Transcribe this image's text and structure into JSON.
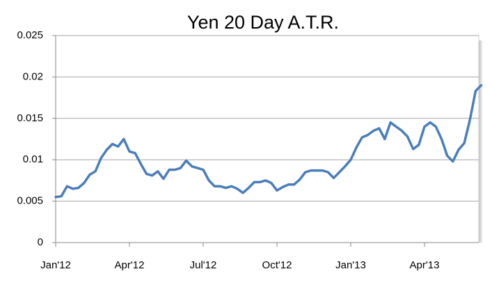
{
  "chart_data": {
    "type": "line",
    "title": "Yen 20 Day A.T.R.",
    "categories": [
      "Jan'12",
      null,
      null,
      null,
      null,
      null,
      null,
      null,
      null,
      null,
      null,
      null,
      null,
      "Apr'12",
      null,
      null,
      null,
      null,
      null,
      null,
      null,
      null,
      null,
      null,
      null,
      null,
      "Jul'12",
      null,
      null,
      null,
      null,
      null,
      null,
      null,
      null,
      null,
      null,
      null,
      null,
      "Oct'12",
      null,
      null,
      null,
      null,
      null,
      null,
      null,
      null,
      null,
      null,
      null,
      null,
      "Jan'13",
      null,
      null,
      null,
      null,
      null,
      null,
      null,
      null,
      null,
      null,
      null,
      null,
      "Apr'13",
      null,
      null,
      null,
      null,
      null,
      null,
      null,
      null,
      null,
      null
    ],
    "series": [
      {
        "color": "#4a7ebb",
        "values": [
          0.0055,
          0.0056,
          0.0068,
          0.0065,
          0.0066,
          0.0072,
          0.0082,
          0.0086,
          0.0102,
          0.0112,
          0.0119,
          0.0116,
          0.0125,
          0.011,
          0.0108,
          0.0095,
          0.0083,
          0.0081,
          0.0086,
          0.0077,
          0.0088,
          0.0088,
          0.009,
          0.0099,
          0.0092,
          0.009,
          0.0088,
          0.0075,
          0.0068,
          0.0068,
          0.0066,
          0.0068,
          0.0065,
          0.006,
          0.0066,
          0.0073,
          0.0073,
          0.0075,
          0.0072,
          0.0063,
          0.0067,
          0.007,
          0.007,
          0.0076,
          0.0085,
          0.0087,
          0.0087,
          0.0087,
          0.0085,
          0.0078,
          0.0085,
          0.0092,
          0.01,
          0.0115,
          0.0127,
          0.013,
          0.0135,
          0.0138,
          0.0125,
          0.0145,
          0.014,
          0.0135,
          0.0128,
          0.0113,
          0.0118,
          0.014,
          0.0145,
          0.014,
          0.0125,
          0.0105,
          0.0098,
          0.0112,
          0.012,
          0.0148,
          0.0183,
          0.019
        ]
      }
    ],
    "ylim": [
      0,
      0.025
    ],
    "yticks": [
      0,
      0.005,
      0.01,
      0.015,
      0.02,
      0.025
    ],
    "grid": true
  }
}
